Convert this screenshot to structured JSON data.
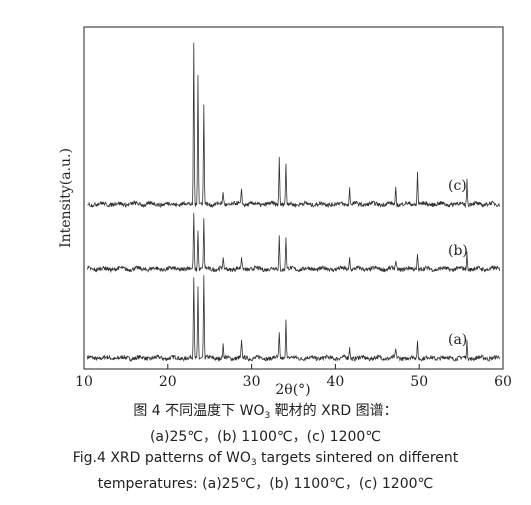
{
  "chart_data": {
    "type": "line",
    "xlabel": "2θ(°)",
    "ylabel": "Intensity(a.u.)",
    "xlim": [
      10,
      60
    ],
    "xticks": [
      10,
      20,
      30,
      40,
      50,
      60
    ],
    "yticks": false,
    "grid": false,
    "series": [
      {
        "name": "(a)",
        "offset": 0,
        "peaks": [
          [
            23.1,
            10
          ],
          [
            23.6,
            9
          ],
          [
            24.3,
            10
          ],
          [
            26.6,
            1.5
          ],
          [
            28.8,
            2
          ],
          [
            33.3,
            3
          ],
          [
            34.1,
            5
          ],
          [
            41.7,
            1.5
          ],
          [
            47.2,
            1
          ],
          [
            49.8,
            2
          ],
          [
            55.7,
            2
          ]
        ]
      },
      {
        "name": "(b)",
        "offset": 11,
        "peaks": [
          [
            23.1,
            7
          ],
          [
            23.6,
            5
          ],
          [
            24.3,
            6
          ],
          [
            26.6,
            1.2
          ],
          [
            28.8,
            1.5
          ],
          [
            33.3,
            4
          ],
          [
            34.1,
            4
          ],
          [
            41.7,
            1.5
          ],
          [
            47.2,
            1
          ],
          [
            49.8,
            2
          ],
          [
            55.7,
            2
          ]
        ]
      },
      {
        "name": "(c)",
        "offset": 19,
        "peaks": [
          [
            23.1,
            20
          ],
          [
            23.6,
            16
          ],
          [
            24.3,
            12
          ],
          [
            26.6,
            1.5
          ],
          [
            28.8,
            2
          ],
          [
            33.3,
            6
          ],
          [
            34.1,
            5
          ],
          [
            41.7,
            2
          ],
          [
            47.2,
            2
          ],
          [
            49.8,
            4
          ],
          [
            55.7,
            3
          ]
        ]
      }
    ]
  },
  "caption": {
    "cn_prefix": "图 4    不同温度下 WO",
    "cn_sub": "3",
    "cn_suffix": " 靶材的 XRD 图谱：",
    "cn_line2": "(a)25℃，(b) 1100℃，(c) 1200℃",
    "en_prefix": "Fig.4    XRD patterns of WO",
    "en_sub": "3",
    "en_suffix": " targets sintered on different",
    "en_line2": "temperatures: (a)25℃，(b) 1100℃，(c) 1200℃"
  }
}
